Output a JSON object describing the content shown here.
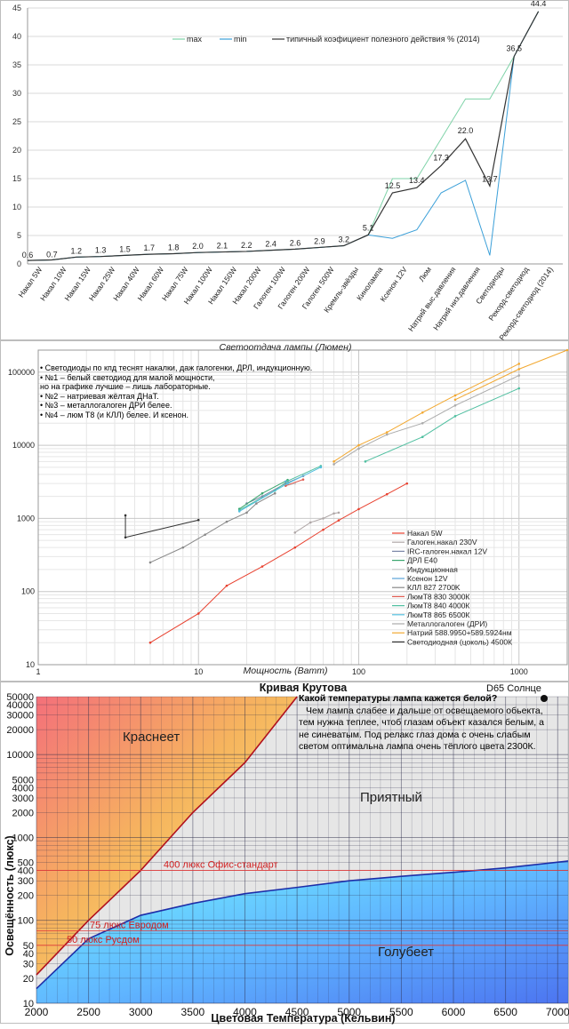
{
  "chart_data": [
    {
      "type": "line",
      "title": "",
      "categories": [
        "Накал 5W",
        "Накал 10W",
        "Накал 15W",
        "Накал 25W",
        "Накал 40W",
        "Накал 60W",
        "Накал 75W",
        "Накал 100W",
        "Накал 150W",
        "Накал 200W",
        "Галоген 100W",
        "Галоген 200W",
        "Галоген 500W",
        "Кремль-звёзды",
        "Кинолампа",
        "Ксенон 12V",
        "Люм",
        "Натрий выс.давления",
        "Натрий низ.давления",
        "Светодиоды",
        "Рекорд-светодиод",
        "Рекорд-светодиод (2014)"
      ],
      "ylim": [
        0,
        45
      ],
      "yticks": [
        0,
        5,
        10,
        15,
        20,
        25,
        30,
        35,
        40,
        45
      ],
      "series": [
        {
          "name": "max",
          "color": "#7fd3a8",
          "values": [
            0.6,
            0.7,
            1.2,
            1.3,
            1.5,
            1.7,
            1.8,
            2.0,
            2.1,
            2.2,
            2.4,
            2.6,
            2.9,
            3.2,
            5.1,
            15,
            15,
            22,
            29,
            29,
            36.5,
            44.4
          ]
        },
        {
          "name": "min",
          "color": "#3a9fd8",
          "values": [
            0.6,
            0.7,
            1.2,
            1.3,
            1.5,
            1.7,
            1.8,
            2.0,
            2.1,
            2.2,
            2.4,
            2.6,
            2.9,
            3.2,
            5.1,
            4.5,
            6,
            12.5,
            14.7,
            1.5,
            36.5,
            44.4
          ]
        },
        {
          "name": "типичный коэфициент полезного действия % (2014)",
          "color": "#333333",
          "values": [
            0.6,
            0.7,
            1.2,
            1.3,
            1.5,
            1.7,
            1.8,
            2.0,
            2.1,
            2.2,
            2.4,
            2.6,
            2.9,
            3.2,
            5.1,
            12.5,
            13.4,
            17.3,
            22.0,
            13.7,
            36.5,
            44.4
          ],
          "labels": [
            "0.6",
            "0.7",
            "1.2",
            "1.3",
            "1.5",
            "1.7",
            "1.8",
            "2.0",
            "2.1",
            "2.2",
            "2.4",
            "2.6",
            "2.9",
            "3.2",
            "5.1",
            "12.5",
            "13.4",
            "17.3",
            "22.0",
            "13.7",
            "36.5",
            "44.4"
          ]
        }
      ]
    },
    {
      "type": "line",
      "title": "Светоотдача лампы (Люмен)",
      "xlabel": "Мощность (Ватт)",
      "xscale": "log",
      "yscale": "log",
      "xlim": [
        1,
        2000
      ],
      "ylim": [
        10,
        200000
      ],
      "xticks": [
        1,
        10,
        100,
        1000
      ],
      "yticks": [
        10,
        100,
        1000,
        10000,
        100000
      ],
      "notes": [
        "• Светодиоды по кпд теснят накалки, даж галогенки, ДРЛ, индукционную.",
        "• №1 – белый светодиод для малой мощности,",
        "но на графике лучшие – лишь лабораторные.",
        "• №2 – натриевая жёлтая ДНаТ.",
        "• №3 – металлогалоген ДРИ белее.",
        "• №4 – люм Т8 (и КЛЛ) белее. И ксенон."
      ],
      "series": [
        {
          "name": "Накал 5W",
          "color": "#e8412f",
          "x": [
            5,
            10,
            15,
            25,
            40,
            60,
            75,
            100,
            150,
            200
          ],
          "y": [
            20,
            50,
            120,
            220,
            400,
            700,
            940,
            1340,
            2140,
            3000
          ]
        },
        {
          "name": "Галоген.накал 230V",
          "color": "#b0a8a8",
          "x": [
            40,
            50,
            60,
            70,
            75
          ],
          "y": [
            640,
            880,
            1000,
            1170,
            1200
          ]
        },
        {
          "name": "IRC-галоген.накал 12V",
          "color": "#7a86a6",
          "x": [
            20,
            25,
            35,
            45
          ],
          "y": [
            1600,
            2000,
            3000,
            3800
          ]
        },
        {
          "name": "ДРЛ E40",
          "color": "#3aa66e",
          "x": [
            18,
            25,
            36
          ],
          "y": [
            1350,
            2200,
            3350
          ]
        },
        {
          "name": "Индукционная",
          "color": "#c9c9c9",
          "x": [
            35,
            40
          ],
          "y": [
            2800,
            3000
          ]
        },
        {
          "name": "Ксенон 12V",
          "color": "#5aa4d8",
          "x": [
            35
          ],
          "y": [
            3200
          ]
        },
        {
          "name": "КЛЛ 827 2700K",
          "color": "#888888",
          "x": [
            5,
            8,
            11,
            15,
            20,
            23,
            30
          ],
          "y": [
            250,
            400,
            600,
            900,
            1200,
            1600,
            2200
          ]
        },
        {
          "name": "ЛюмТ8 830 3000К",
          "color": "#e05a4f",
          "x": [
            35,
            45
          ],
          "y": [
            2800,
            3400
          ]
        },
        {
          "name": "ЛюмТ8 840 4000К",
          "color": "#4fbfa0",
          "x": [
            18,
            30,
            36,
            58
          ],
          "y": [
            1300,
            2400,
            3250,
            5200
          ]
        },
        {
          "name": "ЛюмТ8 865 6500К",
          "color": "#55c0e0",
          "x": [
            18,
            36,
            58
          ],
          "y": [
            1250,
            3000,
            5000
          ]
        },
        {
          "name": "Металлогалоген (ДРИ)",
          "color": "#aaaaaa",
          "x": [
            70,
            100,
            150,
            250,
            400,
            1000
          ],
          "y": [
            5500,
            9000,
            14000,
            20000,
            35000,
            90000
          ]
        },
        {
          "name": "Натрий 588.9950+589.5924нм",
          "color": "#f2a830",
          "x": [
            70,
            100,
            150,
            250,
            400,
            1000
          ],
          "y": [
            6000,
            10000,
            15000,
            28000,
            48000,
            130000
          ]
        },
        {
          "name": "Светодиодная (цоколь) 4500К",
          "color": "#333333",
          "x": [
            3.5,
            3.5,
            10
          ],
          "y": [
            1100,
            550,
            950
          ]
        },
        {
          "name": "",
          "color": "#4fbfa0",
          "x": [
            110,
            250,
            400,
            1000
          ],
          "y": [
            6000,
            13000,
            25000,
            60000
          ]
        },
        {
          "name": "",
          "color": "#f2a830",
          "x": [
            400,
            1000,
            2000
          ],
          "y": [
            42000,
            110000,
            200000
          ]
        }
      ],
      "legend_position": "bottom-right"
    },
    {
      "type": "area",
      "title": "Кривая Крутова",
      "xlabel": "Цветовая Температура (Кельвин)",
      "ylabel": "Освещённость (люкс)",
      "yscale": "log",
      "xlim": [
        2000,
        7100
      ],
      "ylim": [
        10,
        50000
      ],
      "xticks": [
        2000,
        2500,
        3000,
        3500,
        4000,
        4500,
        5000,
        5500,
        6000,
        6500,
        7000
      ],
      "yticks": [
        10,
        20,
        30,
        40,
        50,
        100,
        200,
        300,
        400,
        500,
        1000,
        2000,
        3000,
        4000,
        5000,
        10000,
        20000,
        30000,
        40000,
        50000
      ],
      "regions": [
        "Краснеет",
        "Приятный",
        "Голубеет"
      ],
      "reference_lines": [
        {
          "label": "400 люкс Офис-стандарт",
          "y": 400
        },
        {
          "label": "75 люкс Евродом",
          "y": 75
        },
        {
          "label": "50 люкс Русдом",
          "y": 50
        }
      ],
      "upper_curve": {
        "x": [
          2000,
          2500,
          3000,
          3500,
          4000,
          4500
        ],
        "y": [
          22,
          100,
          400,
          2000,
          8000,
          50000
        ]
      },
      "lower_curve": {
        "x": [
          2000,
          2500,
          3000,
          3500,
          4000,
          4500,
          5000,
          5500,
          6000,
          6500,
          7100
        ],
        "y": [
          15,
          60,
          115,
          160,
          210,
          250,
          300,
          340,
          380,
          430,
          520
        ]
      },
      "top_right_label": "D65 Солнце",
      "note_title": "Какой температуры лампа кажется белой?",
      "note_text": "Чем лампа слабее и дальше от освещаемого обьекта, тем нужна теплее, чтоб глазам объект казался белым, а не синеватым. Под релакс глаз дома с очень слабым светом оптимальна лампа очень тёплого цвета 2300К."
    }
  ]
}
